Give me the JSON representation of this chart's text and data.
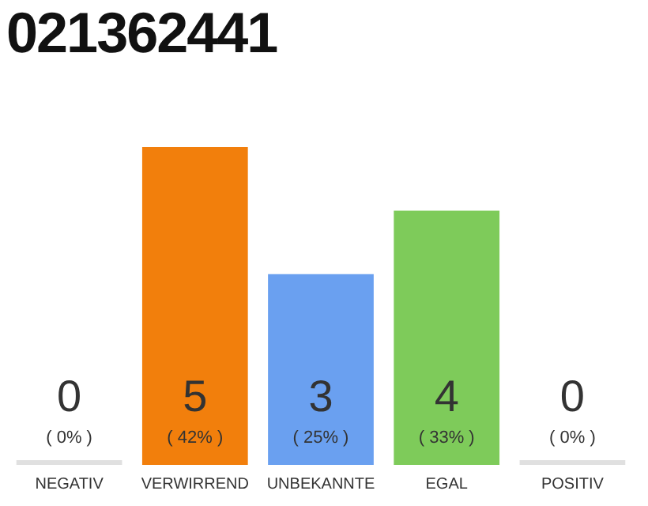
{
  "chart_data": {
    "type": "bar",
    "title": "021362441",
    "categories": [
      "NEGATIV",
      "VERWIRREND",
      "UNBEKANNTE",
      "EGAL",
      "POSITIV"
    ],
    "values": [
      0,
      5,
      3,
      4,
      0
    ],
    "value_labels": [
      "0\n( 0% )",
      "5\n( 42% )",
      "3\n( 25% )",
      "4\n( 33% )",
      "0\n( 0% )"
    ],
    "colors": [
      "#e0e0e0",
      "#f27f0c",
      "#6aa0f0",
      "#7ecb5a",
      "#e0e0e0"
    ],
    "tick_labels": "x",
    "grid": false,
    "legend": false
  }
}
